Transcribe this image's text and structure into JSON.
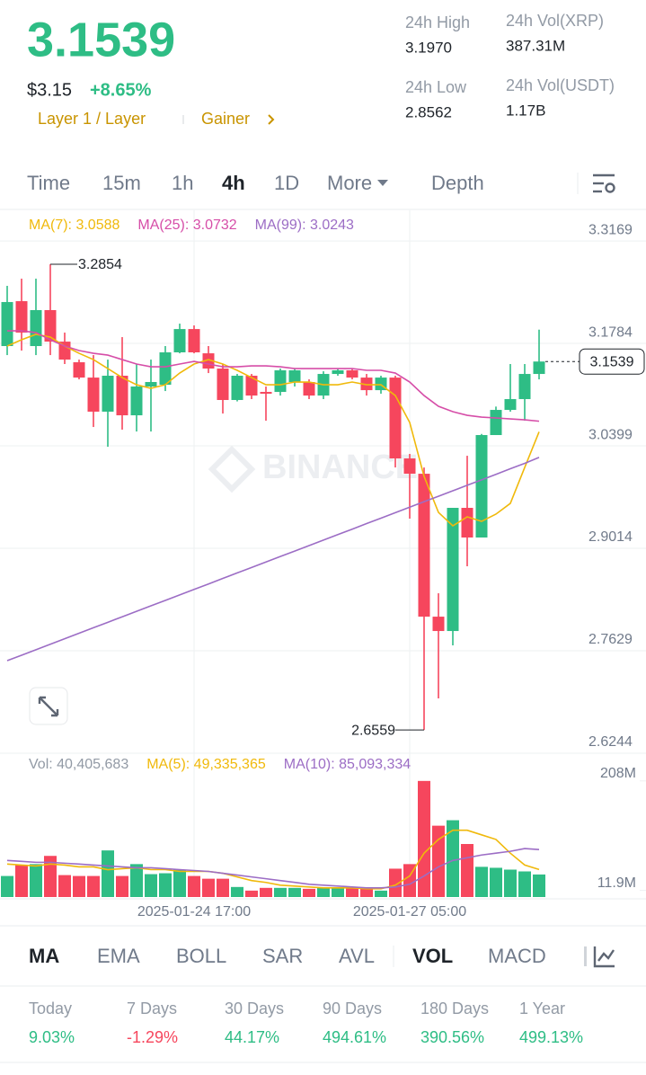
{
  "header": {
    "price": "3.1539",
    "usd_price": "$3.15",
    "change": "+8.65%",
    "tags": [
      "Layer 1 / Layer",
      "Gainer"
    ]
  },
  "stats": [
    {
      "label": "24h High",
      "value": "3.1970"
    },
    {
      "label": "24h Vol(XRP)",
      "value": "387.31M"
    },
    {
      "label": "24h Low",
      "value": "2.8562"
    },
    {
      "label": "24h Vol(USDT)",
      "value": "1.17B"
    }
  ],
  "timeframe_tabs": [
    "Time",
    "15m",
    "1h",
    "4h",
    "1D",
    "More",
    "Depth"
  ],
  "chart_data": [
    {
      "type": "candlestick",
      "up_color": "#2ebd85",
      "down_color": "#f6465d",
      "open": [
        3.1748,
        3.2355,
        3.1748,
        3.2234,
        3.1808,
        3.1529,
        3.1322,
        3.0861,
        3.1347,
        3.0812,
        3.1201,
        3.1225,
        3.1663,
        3.1978,
        3.165,
        3.1444,
        3.1019,
        3.1347,
        3.1128,
        3.1128,
        3.1262,
        3.1262,
        3.1079,
        3.1371,
        3.142,
        3.1322,
        3.1152,
        3.1322,
        3.0229,
        3.0022,
        2.809,
        2.7896,
        2.9561,
        2.916,
        3.0545,
        3.0885,
        3.1031,
        3.1371
      ],
      "high": [
        3.2562,
        3.2659,
        3.2659,
        3.2854,
        3.193,
        3.1565,
        3.1626,
        3.1565,
        3.1869,
        3.1505,
        3.1565,
        3.1748,
        3.2051,
        3.2027,
        3.1748,
        3.1505,
        3.1371,
        3.1371,
        3.1201,
        3.1444,
        3.1444,
        3.1298,
        3.1407,
        3.1444,
        3.1444,
        3.1371,
        3.1347,
        3.1347,
        3.029,
        3.0107,
        2.8406,
        2.9561,
        3.0265,
        3.056,
        3.093,
        3.1505,
        3.1505,
        3.197
      ],
      "low": [
        3.1626,
        3.1687,
        3.1626,
        3.1626,
        3.1505,
        3.1298,
        3.0654,
        3.0387,
        3.0618,
        3.0593,
        3.0593,
        3.114,
        3.165,
        3.165,
        3.1383,
        3.0836,
        3.1,
        3.1031,
        3.0739,
        3.1079,
        3.1201,
        3.1031,
        3.1031,
        3.1347,
        3.1298,
        3.1079,
        3.1104,
        3.0107,
        2.9415,
        2.6559,
        2.6985,
        2.7702,
        2.8771,
        2.916,
        3.0545,
        3.0861,
        3.0739,
        3.1298
      ],
      "close": [
        3.2343,
        3.193,
        3.2234,
        3.1808,
        3.1565,
        3.1322,
        3.0861,
        3.1347,
        3.0812,
        3.1201,
        3.1262,
        3.1663,
        3.1978,
        3.1663,
        3.1444,
        3.1019,
        3.1347,
        3.1079,
        3.1104,
        3.142,
        3.142,
        3.1079,
        3.1371,
        3.142,
        3.1322,
        3.1152,
        3.1322,
        3.0229,
        3.0022,
        2.809,
        2.7896,
        2.9561,
        2.916,
        3.0545,
        3.0885,
        3.1031,
        3.1371,
        3.1539
      ],
      "series": [
        {
          "name": "MA(7): 3.0588",
          "color": "#f0b90b",
          "values": [
            3.1748,
            3.1833,
            3.1906,
            3.1869,
            3.1748,
            3.165,
            3.1565,
            3.1444,
            3.1322,
            3.1225,
            3.1177,
            3.1225,
            3.1383,
            3.1505,
            3.1565,
            3.1505,
            3.142,
            3.1322,
            3.1225,
            3.1225,
            3.1262,
            3.1262,
            3.1225,
            3.1225,
            3.1262,
            3.1225,
            3.1225,
            3.1079,
            3.0715,
            2.9986,
            2.95,
            2.9318,
            2.9439,
            2.9378,
            2.9476,
            2.9621,
            3.0107,
            3.0588
          ]
        },
        {
          "name": "MA(25): 3.0732",
          "color": "#d64ea8",
          "values": [
            3.1954,
            3.1954,
            3.193,
            3.1833,
            3.1748,
            3.1687,
            3.165,
            3.1626,
            3.1565,
            3.1505,
            3.1468,
            3.1468,
            3.1505,
            3.1541,
            3.1505,
            3.1468,
            3.1468,
            3.148,
            3.148,
            3.1468,
            3.1444,
            3.1444,
            3.1444,
            3.1444,
            3.1444,
            3.142,
            3.142,
            3.1383,
            3.1262,
            3.1079,
            3.0934,
            3.0861,
            3.0812,
            3.0788,
            3.0776,
            3.0763,
            3.0751,
            3.0732
          ]
        },
        {
          "name": "MA(99): 3.0243",
          "color": "#9c6dc5",
          "values": [
            2.7495,
            2.7569,
            2.7643,
            2.7717,
            2.7791,
            2.7866,
            2.794,
            2.8014,
            2.8088,
            2.8162,
            2.8236,
            2.831,
            2.8384,
            2.8458,
            2.8532,
            2.8607,
            2.8681,
            2.8755,
            2.8829,
            2.8903,
            2.8977,
            2.9051,
            2.9125,
            2.9199,
            2.9273,
            2.9348,
            2.9422,
            2.9496,
            2.957,
            2.9644,
            2.9718,
            2.9792,
            2.9866,
            2.994,
            3.0014,
            3.0089,
            3.0163,
            3.0243
          ]
        }
      ],
      "ylim": [
        2.6244,
        3.351
      ],
      "yticks": [
        3.3169,
        3.1784,
        3.0399,
        2.9014,
        2.7629,
        2.6244
      ],
      "grid": true,
      "last_price": 3.1539,
      "high_marker": 3.2854,
      "low_marker": 2.6559,
      "watermark": "BINANCE"
    },
    {
      "type": "volume",
      "categories": [
        null,
        null,
        null,
        null,
        null,
        null,
        null,
        null,
        null,
        null,
        null,
        null,
        null,
        "2025-01-24 17:00",
        null,
        null,
        null,
        null,
        null,
        null,
        null,
        null,
        null,
        null,
        null,
        null,
        null,
        null,
        "2025-01-27 05:00",
        null,
        null,
        null,
        null,
        null,
        null,
        null,
        null,
        null
      ],
      "series": [
        {
          "name": "Vol: 40,405,683",
          "values": [
            37700000,
            57300000,
            59000000,
            73700000,
            39300000,
            37700000,
            37700000,
            83500000,
            37700000,
            59000000,
            41000000,
            42600000,
            49100000,
            37700000,
            32800000,
            32800000,
            18000000,
            11500000,
            16400000,
            16400000,
            16400000,
            14700000,
            16400000,
            16400000,
            16400000,
            14700000,
            11500000,
            50800000,
            59000000,
            208000000,
            127800000,
            137600000,
            95000000,
            54100000,
            52400000,
            49100000,
            45900000,
            40405683
          ]
        },
        {
          "name": "MA(5): 49,335,365",
          "color": "#f0b90b",
          "values": [
            59000000,
            57300000,
            55700000,
            59000000,
            57300000,
            54100000,
            54100000,
            49100000,
            50800000,
            52400000,
            49100000,
            49100000,
            45900000,
            45900000,
            45900000,
            42600000,
            36000000,
            29500000,
            26200000,
            21300000,
            19700000,
            18000000,
            16400000,
            16400000,
            16400000,
            14700000,
            14700000,
            21300000,
            37700000,
            78600000,
            103200000,
            119600000,
            119600000,
            111400000,
            103200000,
            78600000,
            57300000,
            49335365
          ]
        },
        {
          "name": "MA(10): 85,093,334",
          "color": "#9c6dc5",
          "values": [
            65500000,
            63900000,
            62200000,
            62200000,
            60600000,
            59000000,
            57300000,
            55700000,
            54100000,
            52400000,
            52400000,
            50800000,
            49100000,
            47500000,
            45900000,
            42600000,
            39300000,
            36000000,
            32800000,
            29500000,
            26200000,
            22900000,
            21300000,
            19700000,
            18000000,
            16400000,
            16400000,
            18000000,
            22900000,
            37700000,
            54100000,
            65500000,
            70400000,
            75300000,
            78600000,
            81900000,
            86800000,
            85093334
          ]
        }
      ],
      "ylim": [
        0,
        219000000
      ],
      "yticks": [
        {
          "value": 208000000,
          "label": "208M"
        },
        {
          "value": 11900000,
          "label": "11.9M"
        }
      ]
    }
  ],
  "indicator_tabs": [
    "MA",
    "EMA",
    "BOLL",
    "SAR",
    "AVL",
    "VOL",
    "MACD"
  ],
  "performance": [
    {
      "label": "Today",
      "value": "9.03%"
    },
    {
      "label": "7 Days",
      "value": "-1.29%"
    },
    {
      "label": "30 Days",
      "value": "44.17%"
    },
    {
      "label": "90 Days",
      "value": "494.61%"
    },
    {
      "label": "180 Days",
      "value": "390.56%"
    },
    {
      "label": "1 Year",
      "value": "499.13%"
    }
  ]
}
